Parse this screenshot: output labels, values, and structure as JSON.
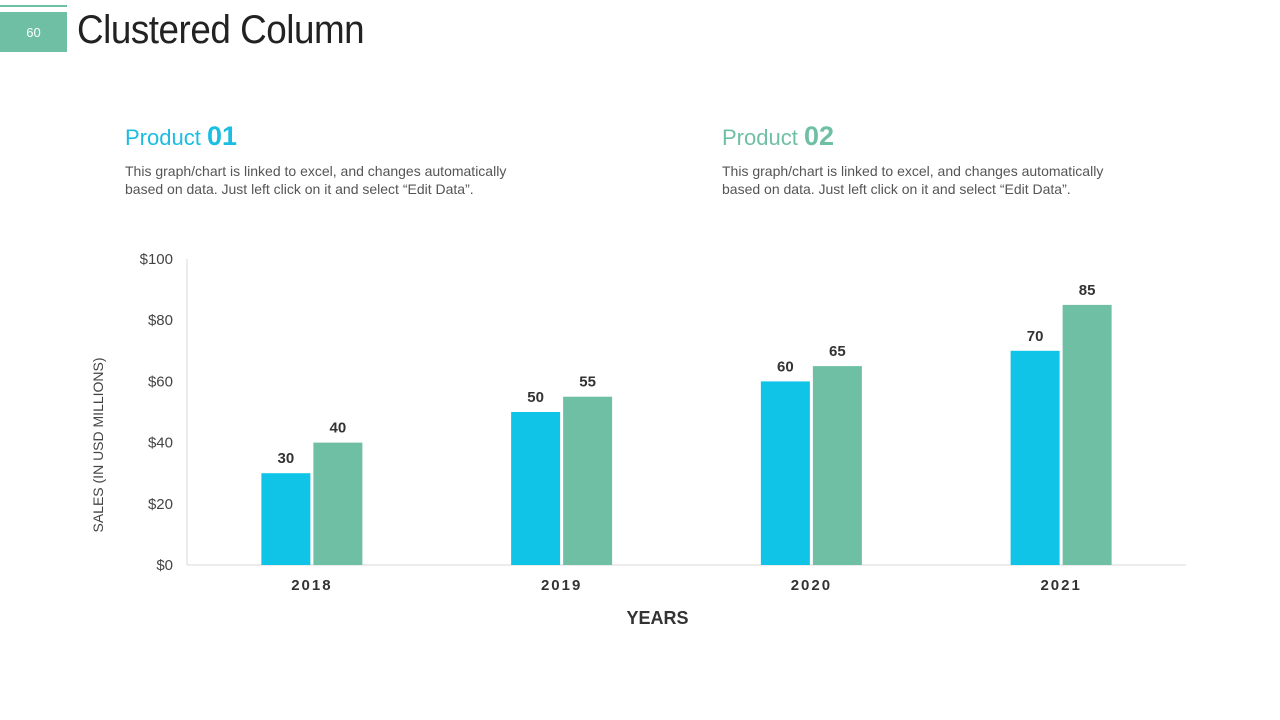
{
  "slide": {
    "page_number": "60",
    "title": "Clustered Column"
  },
  "products": [
    {
      "label": "Product",
      "number": "01",
      "description": "This graph/chart is linked to excel, and changes automatically based on data. Just left click on it and select “Edit Data”."
    },
    {
      "label": "Product",
      "number": "02",
      "description": "This graph/chart is linked to excel, and changes automatically based on data. Just left click on it and select “Edit Data”."
    }
  ],
  "colors": {
    "accent": "#6fbfa5",
    "series1": "#10c4e8",
    "series2": "#6fbfa5"
  },
  "chart_data": {
    "type": "bar",
    "categories": [
      "2018",
      "2019",
      "2020",
      "2021"
    ],
    "series": [
      {
        "values": [
          30,
          50,
          60,
          70
        ]
      },
      {
        "values": [
          40,
          55,
          65,
          85
        ]
      }
    ],
    "xlabel": "YEARS",
    "ylabel": "SALES (IN USD MILLIONS)",
    "ylim": [
      0,
      100
    ],
    "yticks": [
      "$0",
      "$20",
      "$40",
      "$60",
      "$80",
      "$100"
    ],
    "grid": false,
    "legend": "none"
  }
}
